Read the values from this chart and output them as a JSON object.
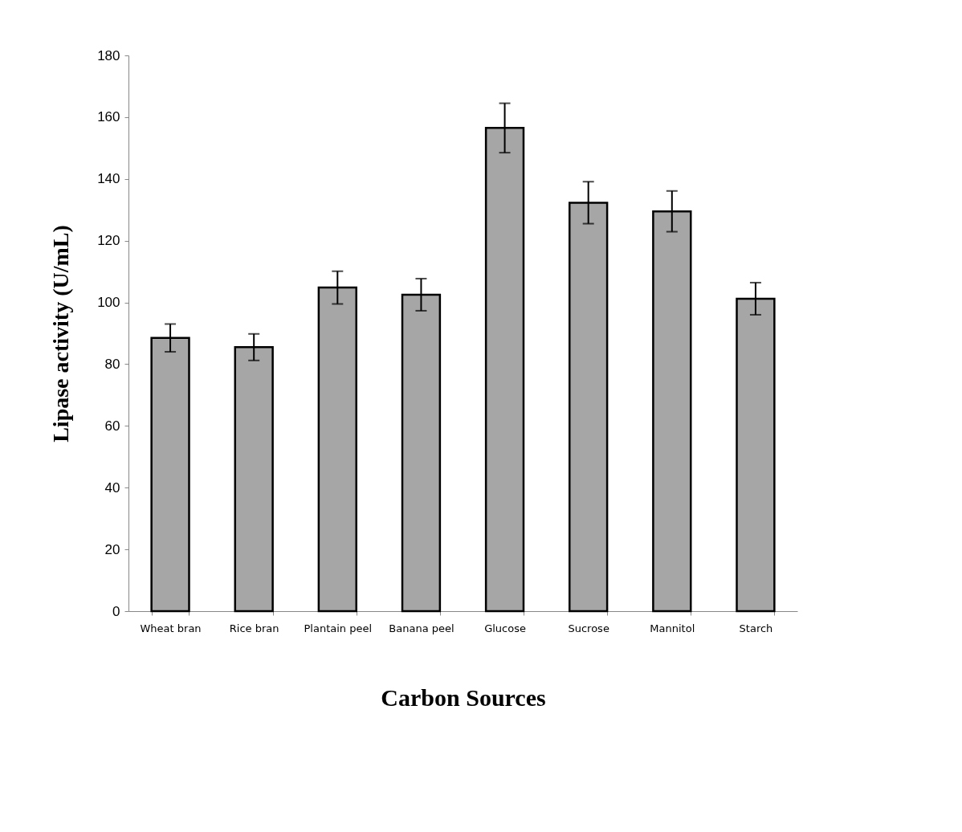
{
  "chart_data": {
    "type": "bar",
    "xlabel": "Carbon Sources",
    "ylabel": "Lipase activity (U/mL)",
    "categories": [
      "Wheat bran",
      "Rice bran",
      "Plantain peel",
      "Banana peel",
      "Glucose",
      "Sucrose",
      "Mannitol",
      "Starch"
    ],
    "values": [
      88.5,
      85.5,
      104.8,
      102.5,
      156.5,
      132.3,
      129.5,
      101.2
    ],
    "errors": [
      4.5,
      4.3,
      5.3,
      5.2,
      8,
      6.8,
      6.6,
      5.2
    ],
    "color": "#a6a6a6",
    "ylim": [
      0,
      180
    ],
    "yticks": [
      0,
      20,
      40,
      60,
      80,
      100,
      120,
      140,
      160,
      180
    ],
    "grid": false
  }
}
